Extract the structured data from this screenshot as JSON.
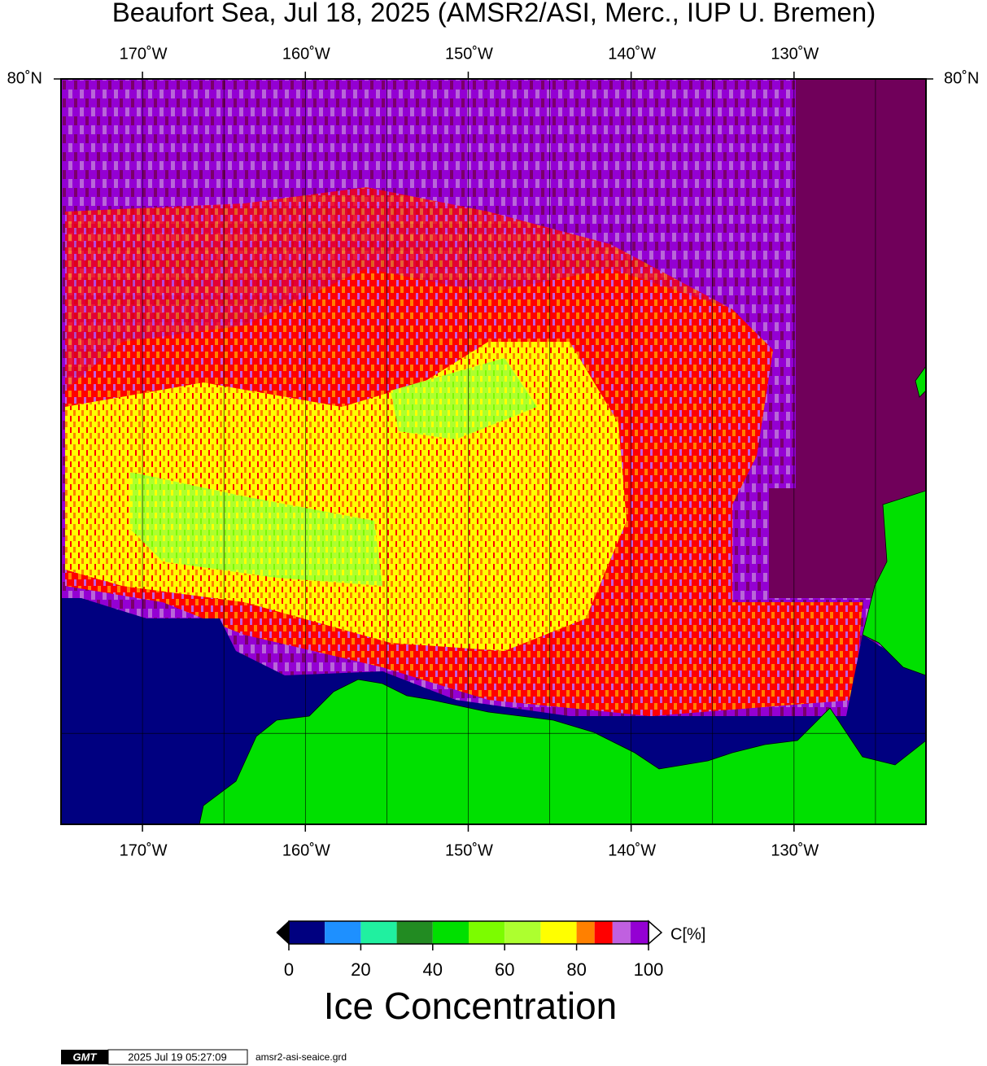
{
  "chart_data": {
    "type": "map",
    "title": "Beaufort Sea, Jul 18, 2025 (AMSR2/ASI, Merc., IUP U. Bremen)",
    "projection": "mercator",
    "xlim": [
      -175,
      -121.9
    ],
    "ylim": [
      68,
      80
    ],
    "xticks": [
      {
        "value": -170,
        "label": "170˚W"
      },
      {
        "value": -160,
        "label": "160˚W"
      },
      {
        "value": -150,
        "label": "150˚W"
      },
      {
        "value": -140,
        "label": "140˚W"
      },
      {
        "value": -130,
        "label": "130˚W"
      }
    ],
    "yticks": [
      {
        "value": 80,
        "label": "80˚N"
      }
    ],
    "xgrid": [
      -170,
      -165,
      -160,
      -155,
      -150,
      -145,
      -140,
      -135,
      -130,
      -125
    ],
    "ygrid": [
      70
    ],
    "colorbar": {
      "bins": [
        0,
        10,
        20,
        30,
        40,
        50,
        60,
        70,
        80,
        85,
        90,
        95,
        100
      ],
      "colors": [
        "#000080",
        "#1e90ff",
        "#20f0a0",
        "#228b22",
        "#00e000",
        "#7cfc00",
        "#adff2f",
        "#ffff00",
        "#ff8000",
        "#ff0000",
        "#c060e0",
        "#9400d3"
      ],
      "ticks": [
        0,
        20,
        40,
        60,
        80,
        100
      ],
      "unit_label": "C[%]",
      "label": "Ice Concentration"
    }
  },
  "footer": {
    "logo": "GMT",
    "timestamp": "2025 Jul 19 05:27:09",
    "filename": "amsr2-asi-seaice.grd"
  }
}
